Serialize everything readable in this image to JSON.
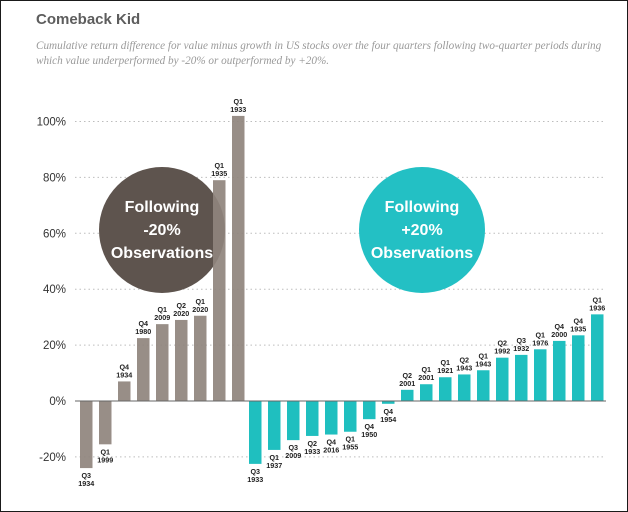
{
  "title": "Comeback Kid",
  "subtitle": "Cumulative return difference for value minus growth in US stocks over the four quarters following two-quarter periods during which value underperformed by -20% or outperformed by +20%.",
  "colors": {
    "negative_group": "#8f847d",
    "positive_group": "#1fbfbf",
    "negative_circle": "#5e544e",
    "positive_circle": "#23c0c4",
    "grid": "#bdbdbd",
    "axis": "#666666"
  },
  "chart_data": {
    "type": "bar",
    "title": "Comeback Kid",
    "xlabel": "",
    "ylabel": "",
    "y_tick_values": [
      -20,
      0,
      20,
      40,
      60,
      80,
      100
    ],
    "y_tick_labels": [
      "-20%",
      "0%",
      "20%",
      "40%",
      "60%",
      "80%",
      "100%"
    ],
    "ylim": [
      -28,
      108
    ],
    "grid": true,
    "series": [
      {
        "name": "Following -20% Observations",
        "categories": [
          [
            "Q3",
            "1934"
          ],
          [
            "Q1",
            "1999"
          ],
          [
            "Q4",
            "1934"
          ],
          [
            "Q4",
            "1980"
          ],
          [
            "Q1",
            "2009"
          ],
          [
            "Q2",
            "2020"
          ],
          [
            "Q1",
            "2020"
          ],
          [
            "Q1",
            "1935"
          ],
          [
            "Q1",
            "1933"
          ]
        ],
        "values": [
          -24,
          -15.5,
          7,
          22.5,
          27.5,
          29,
          30.5,
          79,
          102
        ]
      },
      {
        "name": "Following +20% Observations",
        "categories": [
          [
            "Q3",
            "1933"
          ],
          [
            "Q1",
            "1937"
          ],
          [
            "Q3",
            "2009"
          ],
          [
            "Q2",
            "1933"
          ],
          [
            "Q4",
            "2016"
          ],
          [
            "Q1",
            "1955"
          ],
          [
            "Q4",
            "1950"
          ],
          [
            "Q4",
            "1954"
          ],
          [
            "Q2",
            "2001"
          ],
          [
            "Q1",
            "2001"
          ],
          [
            "Q1",
            "1921"
          ],
          [
            "Q2",
            "1943"
          ],
          [
            "Q1",
            "1943"
          ],
          [
            "Q2",
            "1992"
          ],
          [
            "Q3",
            "1932"
          ],
          [
            "Q1",
            "1976"
          ],
          [
            "Q4",
            "2000"
          ],
          [
            "Q4",
            "1935"
          ],
          [
            "Q1",
            "1936"
          ]
        ],
        "values": [
          -22.5,
          -17.5,
          -14,
          -12.5,
          -12,
          -11,
          -6.5,
          -1,
          4,
          6,
          8.5,
          9.5,
          11,
          15.5,
          16.5,
          18.5,
          21.5,
          23.5,
          31
        ]
      }
    ],
    "annotations": [
      {
        "group": 0,
        "lines": [
          "Following",
          "-20%",
          "Observations"
        ]
      },
      {
        "group": 1,
        "lines": [
          "Following",
          "+20%",
          "Observations"
        ]
      }
    ]
  }
}
